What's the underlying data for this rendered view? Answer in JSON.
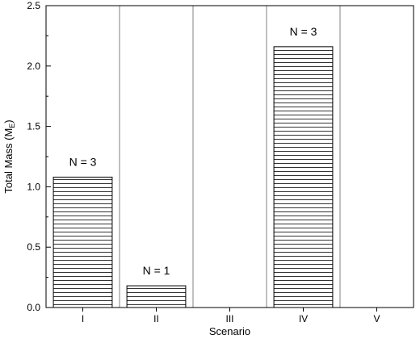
{
  "chart_data": {
    "type": "bar",
    "categories": [
      "I",
      "II",
      "III",
      "IV",
      "V"
    ],
    "values": [
      1.08,
      0.18,
      0,
      2.16,
      0
    ],
    "bar_labels": [
      "N = 3",
      "N = 1",
      "",
      "N = 3",
      ""
    ],
    "title": "",
    "xlabel": "Scenario",
    "ylabel": {
      "prefix": "Total Mass (M",
      "subscript": "E",
      "suffix": ")"
    },
    "ylim": [
      0,
      2.5
    ],
    "yticks": [
      "0.0",
      "0.5",
      "1.0",
      "1.5",
      "2.0",
      "2.5"
    ],
    "ytick_values": [
      0,
      0.5,
      1.0,
      1.5,
      2.0,
      2.5
    ],
    "category_separators": true,
    "bar_fill": "horizontal-hatch",
    "colors": {
      "bar_stroke": "#000000",
      "hatch": "#000000",
      "separator": "#808080",
      "axis": "#000000"
    },
    "grid": false,
    "legend": "none"
  }
}
